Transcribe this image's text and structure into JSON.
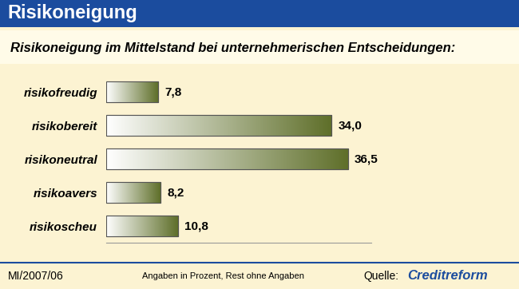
{
  "header": "Risikoneigung",
  "chart_data": {
    "type": "bar",
    "orientation": "horizontal",
    "title": "Risikoneigung im Mittelstand bei unternehmerischen Entscheidungen:",
    "categories": [
      "risikofreudig",
      "risikobereit",
      "risikoneutral",
      "risikoavers",
      "risikoscheu"
    ],
    "values": [
      7.8,
      34.0,
      36.5,
      8.2,
      10.8
    ],
    "value_labels": [
      "7,8",
      "34,0",
      "36,5",
      "8,2",
      "10,8"
    ],
    "data_labels": true,
    "color": "#5f6f2a",
    "xlim": [
      0,
      40
    ],
    "tick_labels": "y",
    "grid": false
  },
  "footer": {
    "code": "MI/2007/06",
    "note": "Angaben in Prozent, Rest ohne Angaben",
    "source_label": "Quelle:",
    "source": "Creditreform"
  }
}
